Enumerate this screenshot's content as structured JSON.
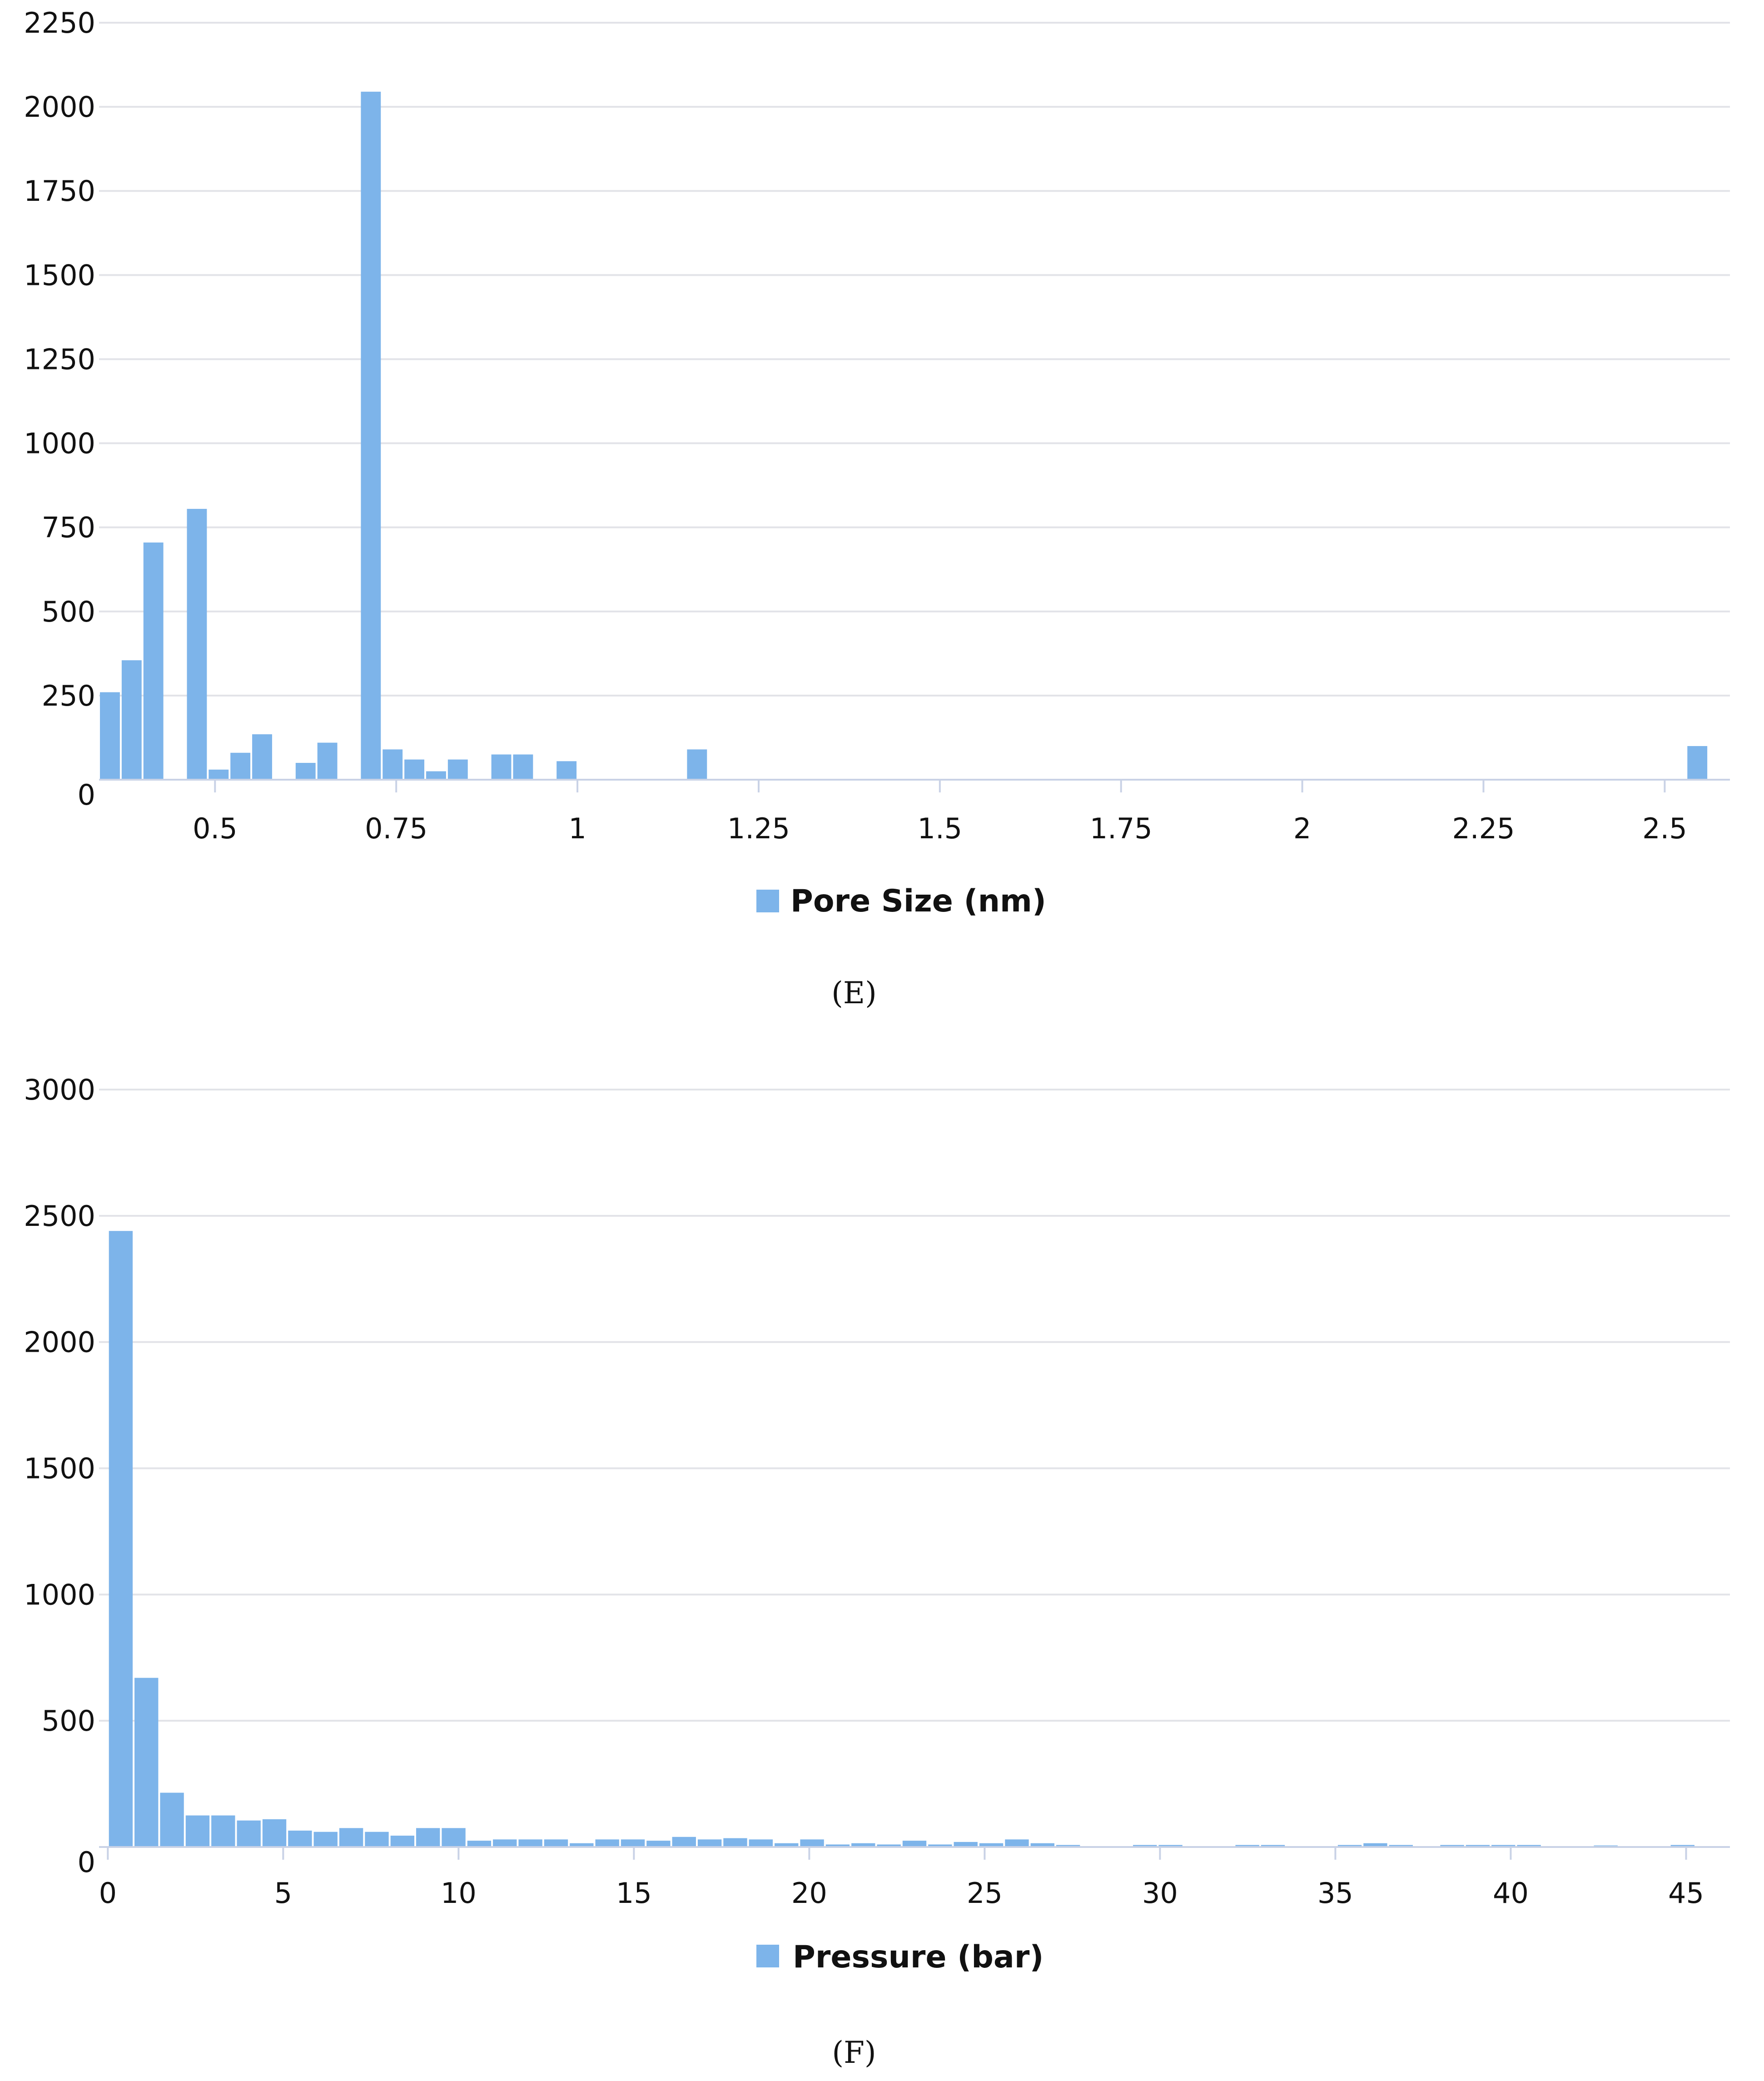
{
  "charts": [
    {
      "panel_label": "(E)",
      "legend_label": "Pore Size (nm)",
      "chart_data": {
        "type": "bar",
        "title": "",
        "xlabel": "",
        "ylabel": "",
        "legend": [
          "Pore Size (nm)"
        ],
        "legend_position": "bottom",
        "grid": true,
        "color": "#7db4ea",
        "xlim": [
          0.34,
          2.59
        ],
        "ylim": [
          0,
          2250
        ],
        "x_ticks": [
          0.5,
          0.75,
          1,
          1.25,
          1.5,
          1.75,
          2,
          2.25,
          2.5
        ],
        "x_tick_labels": [
          "0.5",
          "0.75",
          "1",
          "1.25",
          "1.5",
          "1.75",
          "2",
          "2.25",
          "2.5"
        ],
        "y_ticks": [
          0,
          250,
          500,
          750,
          1000,
          1250,
          1500,
          1750,
          2000,
          2250
        ],
        "y_tick_labels": [
          "0",
          "250",
          "500",
          "750",
          "1000",
          "1250",
          "1500",
          "1750",
          "2000",
          "2250"
        ],
        "bin_width": 0.03,
        "series": [
          {
            "x": [
              0.355,
              0.385,
              0.415,
              0.475,
              0.505,
              0.535,
              0.565,
              0.625,
              0.655,
              0.715,
              0.745,
              0.775,
              0.805,
              0.835,
              0.895,
              0.925,
              0.985,
              1.165,
              2.545
            ],
            "values": [
              260,
              355,
              705,
              805,
              30,
              80,
              135,
              50,
              110,
              2045,
              90,
              60,
              25,
              60,
              75,
              75,
              55,
              90,
              100
            ]
          }
        ]
      }
    },
    {
      "panel_label": "(F)",
      "legend_label": "Pressure (bar)",
      "chart_data": {
        "type": "bar",
        "title": "",
        "xlabel": "",
        "ylabel": "",
        "legend": [
          "Pressure (bar)"
        ],
        "legend_position": "bottom",
        "grid": true,
        "color": "#7db4ea",
        "xlim": [
          -0.25,
          46.25
        ],
        "ylim": [
          0,
          3000
        ],
        "x_ticks": [
          0,
          5,
          10,
          15,
          20,
          25,
          30,
          35,
          40,
          45
        ],
        "x_tick_labels": [
          "0",
          "5",
          "10",
          "15",
          "20",
          "25",
          "30",
          "35",
          "40",
          "45"
        ],
        "y_ticks": [
          0,
          500,
          1000,
          1500,
          2000,
          2500,
          3000
        ],
        "y_tick_labels": [
          "0",
          "500",
          "1000",
          "1500",
          "2000",
          "2500",
          "3000"
        ],
        "bin_width": 0.73,
        "series": [
          {
            "x": [
              0.37,
              1.1,
              1.83,
              2.56,
              3.29,
              4.02,
              4.75,
              5.48,
              6.21,
              6.94,
              7.67,
              8.4,
              9.13,
              9.86,
              10.59,
              11.32,
              12.05,
              12.78,
              13.51,
              14.24,
              14.97,
              15.7,
              16.43,
              17.16,
              17.89,
              18.62,
              19.35,
              20.08,
              20.81,
              21.54,
              22.27,
              23,
              23.73,
              24.46,
              25.19,
              25.92,
              26.65,
              27.38,
              29.57,
              30.3,
              32.49,
              33.22,
              35.41,
              36.14,
              36.87,
              38.33,
              39.06,
              39.79,
              40.52,
              42.71,
              44.9
            ],
            "values": [
              2440,
              670,
              215,
              125,
              125,
              105,
              110,
              65,
              60,
              75,
              60,
              45,
              75,
              75,
              25,
              30,
              30,
              30,
              15,
              30,
              30,
              25,
              40,
              30,
              35,
              30,
              15,
              30,
              10,
              15,
              10,
              25,
              10,
              20,
              15,
              30,
              15,
              8,
              8,
              8,
              8,
              8,
              8,
              15,
              8,
              8,
              8,
              8,
              8,
              6,
              8
            ]
          }
        ]
      }
    }
  ]
}
